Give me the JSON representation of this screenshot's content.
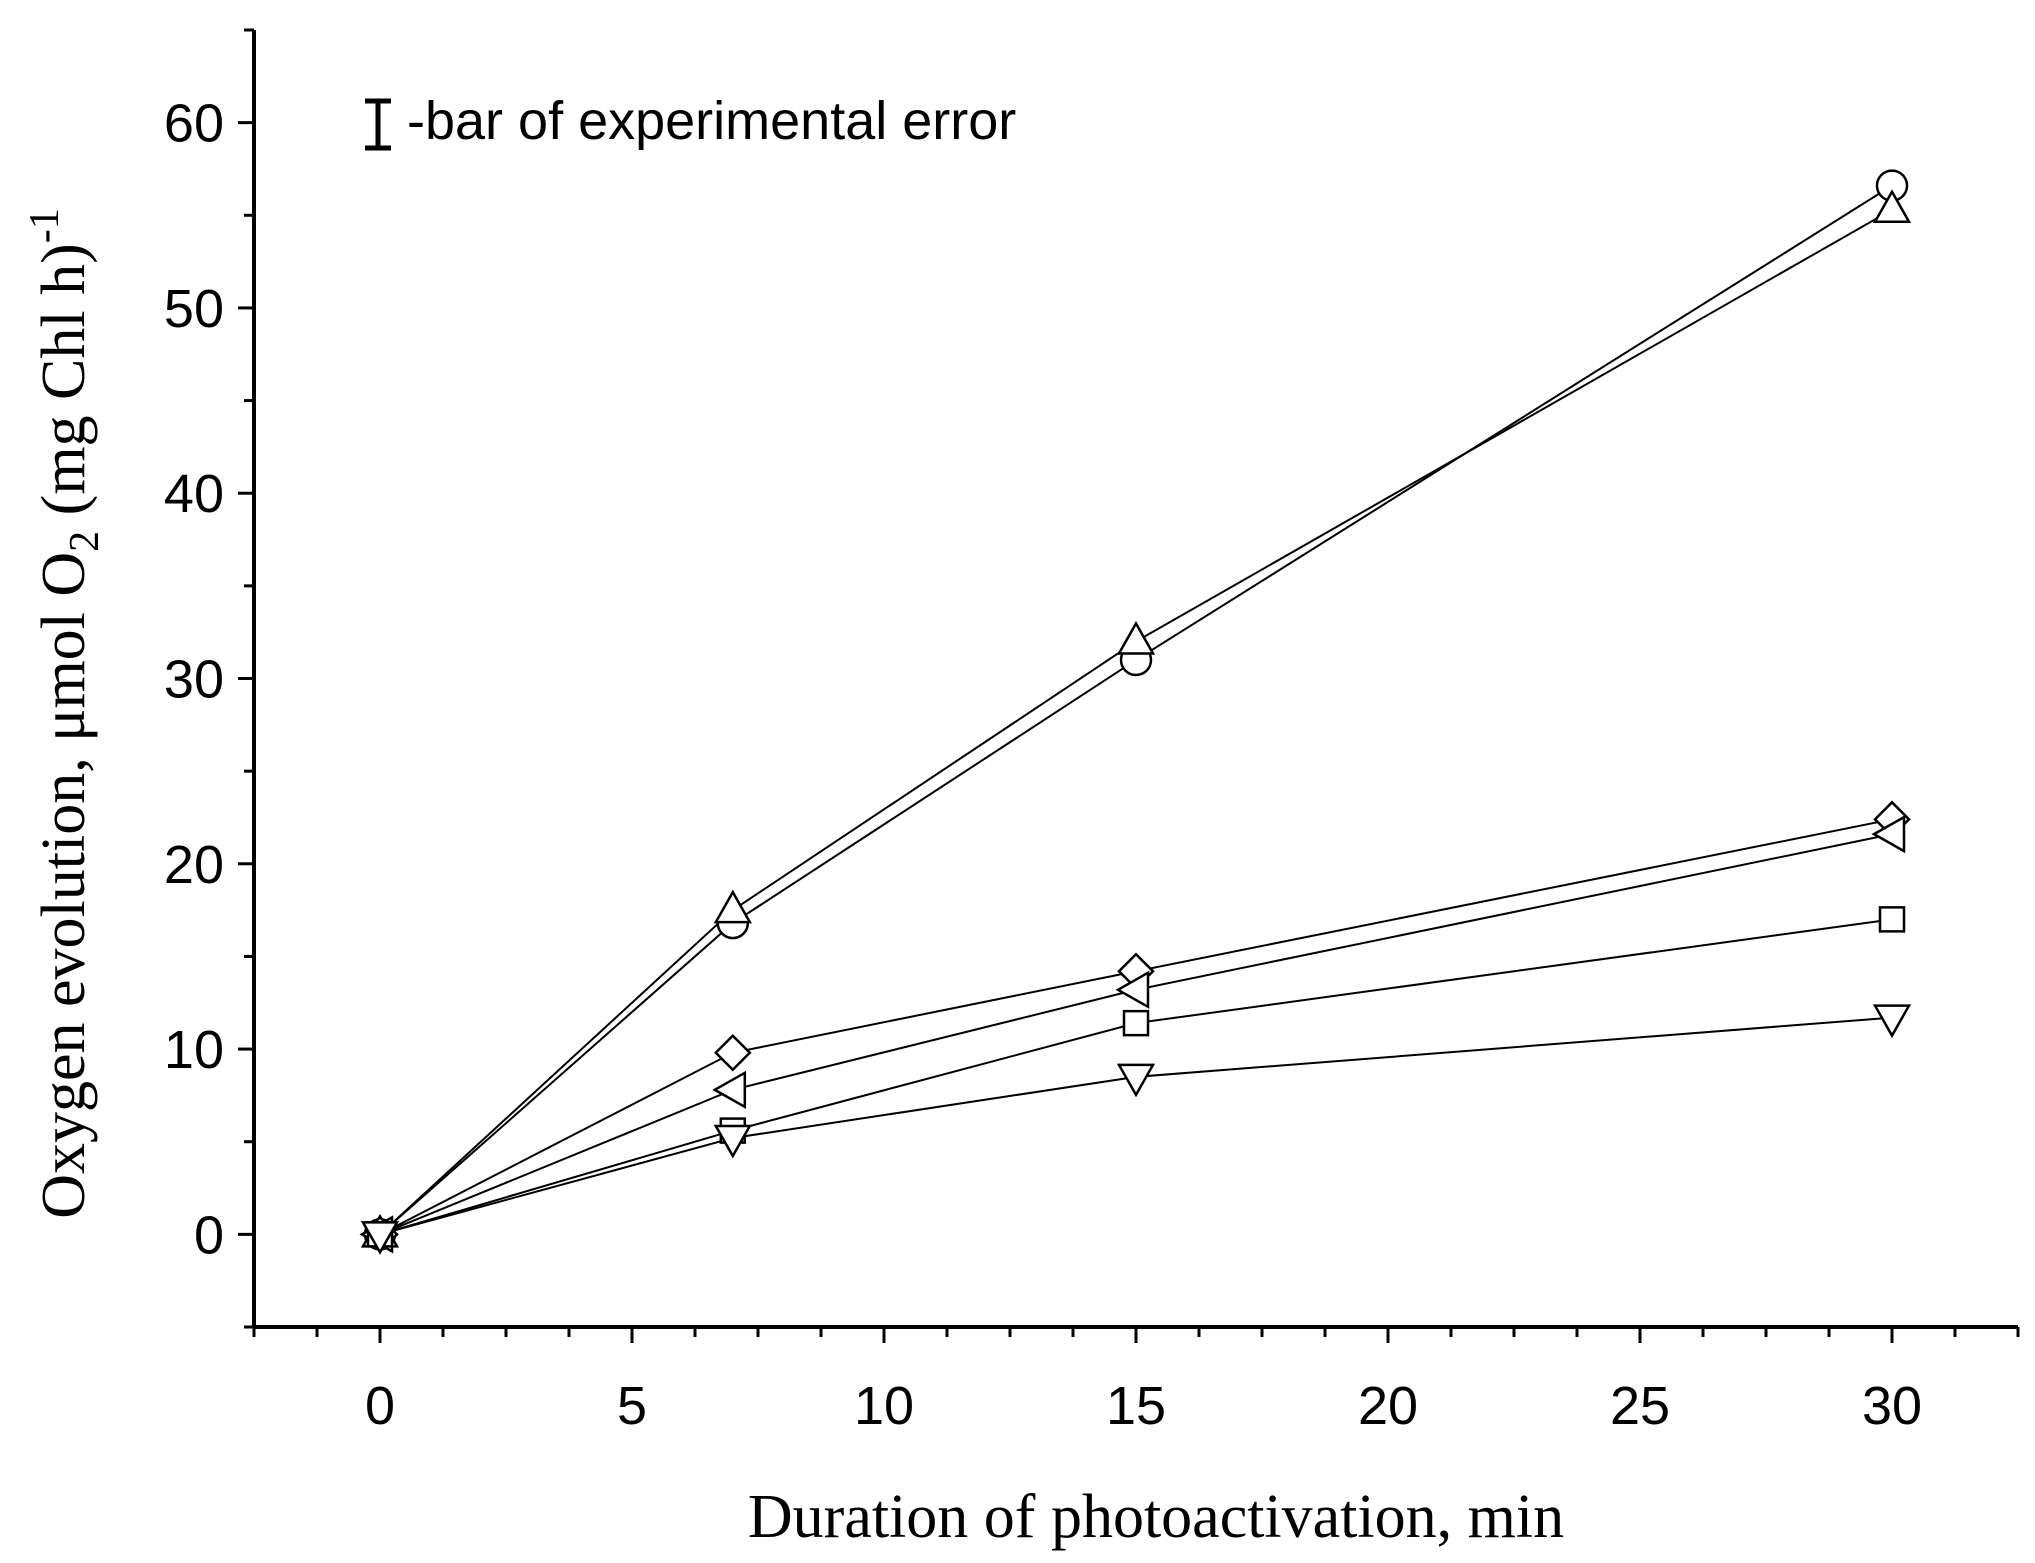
{
  "chart_data": {
    "type": "line",
    "xlabel": "Duration of photoactivation, min",
    "ylabel": {
      "main": "Oxygen evolution, μmol O",
      "subscript": "2",
      "tail": " (mg Chl h)",
      "superscript": "-1"
    },
    "xlim": [
      -2.5,
      32.5
    ],
    "ylim": [
      -5,
      65
    ],
    "xticks": [
      0,
      5,
      10,
      15,
      20,
      25,
      30
    ],
    "yticks": [
      0,
      10,
      20,
      30,
      40,
      50,
      60
    ],
    "annotation": "-bar of experimental error",
    "grid": false,
    "series": [
      {
        "marker": "circle",
        "x": [
          0,
          7,
          15,
          30
        ],
        "y": [
          0,
          16.8,
          31.0,
          56.6
        ]
      },
      {
        "marker": "triangle-up",
        "x": [
          0,
          7,
          15,
          30
        ],
        "y": [
          0,
          17.5,
          32.0,
          55.3
        ]
      },
      {
        "marker": "diamond",
        "x": [
          0,
          7,
          15,
          30
        ],
        "y": [
          0,
          9.8,
          14.2,
          22.4
        ]
      },
      {
        "marker": "triangle-left",
        "x": [
          0,
          7,
          15,
          30
        ],
        "y": [
          0,
          7.8,
          13.2,
          21.6
        ]
      },
      {
        "marker": "square",
        "x": [
          0,
          7,
          15,
          30
        ],
        "y": [
          0,
          5.6,
          11.4,
          17.0
        ]
      },
      {
        "marker": "triangle-down",
        "x": [
          0,
          7,
          15,
          30
        ],
        "y": [
          0,
          5.2,
          8.5,
          11.7
        ]
      }
    ]
  }
}
